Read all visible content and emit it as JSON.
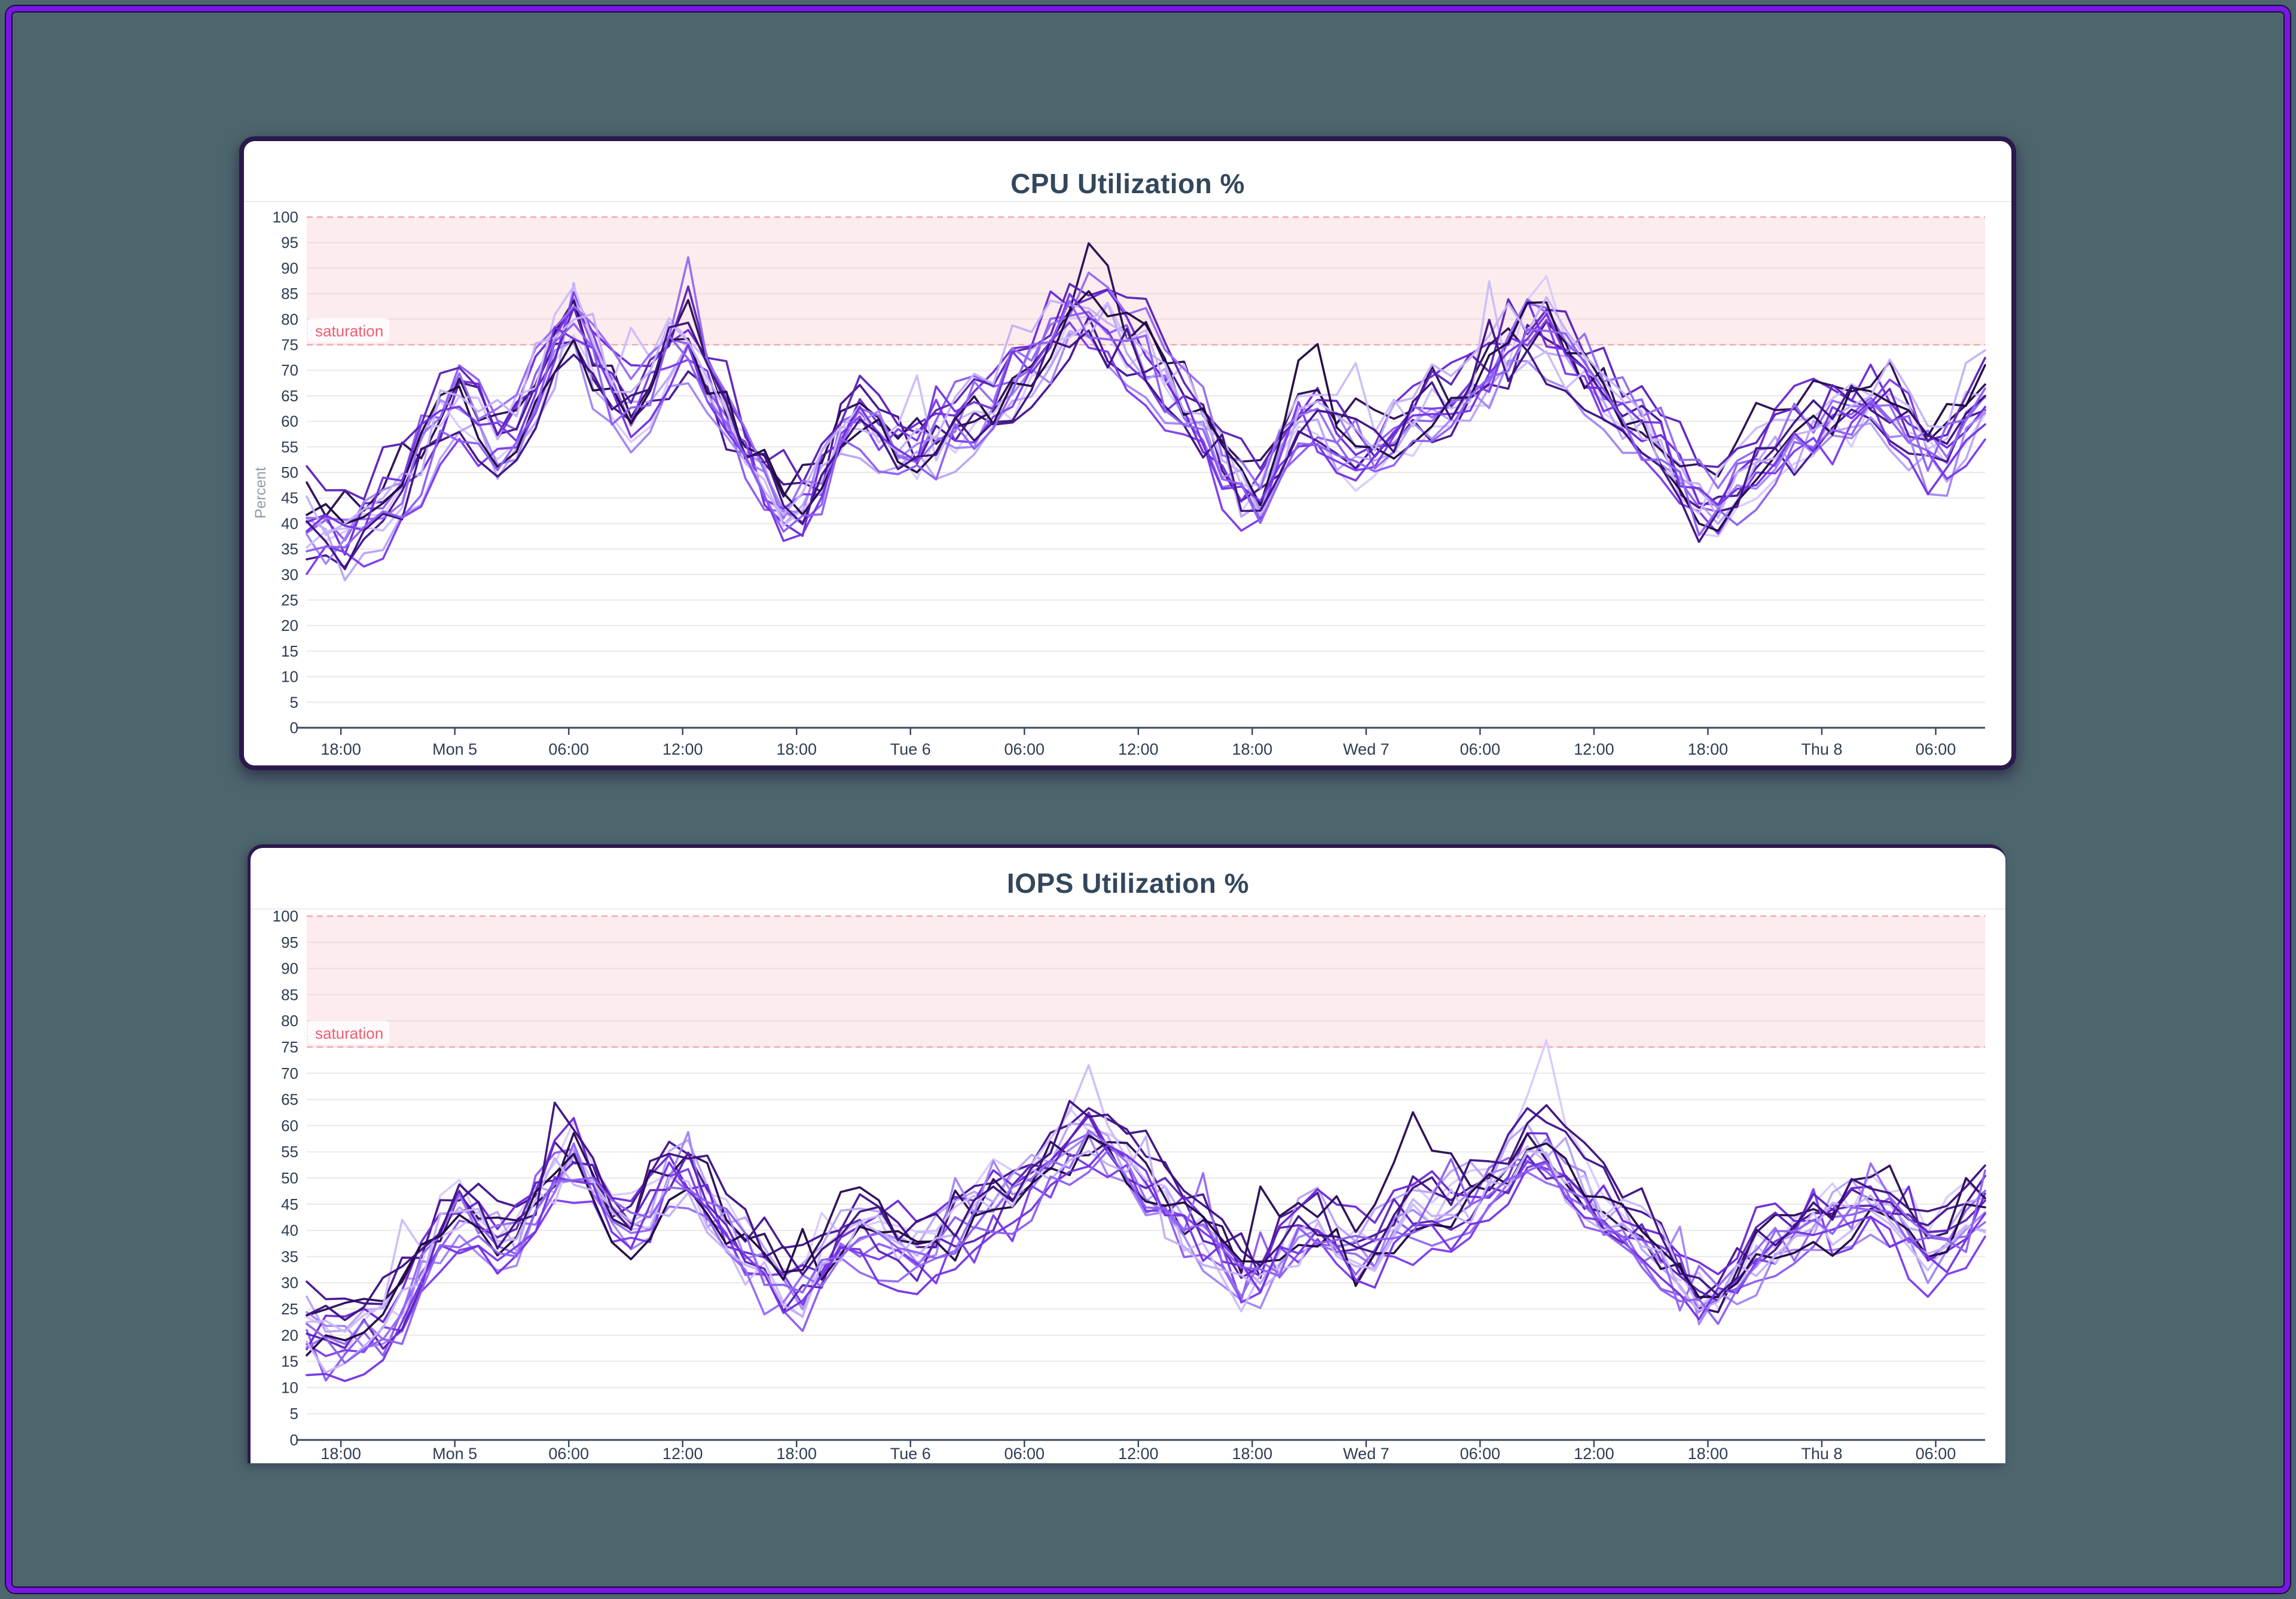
{
  "page": {
    "background": "#4d666e",
    "frame_color": "#7a16e6",
    "frame_edge_color": "#171033"
  },
  "theme": {
    "card_bg": "#ffffff",
    "card_border": "#2b194c",
    "title_color": "#33475c",
    "axis_text_color": "#2e3d52",
    "axis_line_color": "#3a4a5f",
    "grid_color": "#e8e8e8",
    "separator_color": "#ededed",
    "band_fill": "#f9c5ca",
    "band_fill_opacity": 0.32,
    "band_dash_color": "#f2a8ad",
    "saturation_text_color": "#ee5d72",
    "saturation_bg": "#ffffff",
    "percent_label_color": "#8f9aa6"
  },
  "chart_data": [
    {
      "type": "line",
      "title": "CPU Utilization %",
      "ylabel": "Percent",
      "y_axis": {
        "min": 0,
        "max": 100,
        "step": 5
      },
      "x_range_hours": {
        "min": -1.8,
        "max": 86.6
      },
      "x_ticks": [
        {
          "hour": 0,
          "label": "18:00"
        },
        {
          "hour": 6,
          "label": "Mon 5"
        },
        {
          "hour": 12,
          "label": "06:00"
        },
        {
          "hour": 18,
          "label": "12:00"
        },
        {
          "hour": 24,
          "label": "18:00"
        },
        {
          "hour": 30,
          "label": "Tue 6"
        },
        {
          "hour": 36,
          "label": "06:00"
        },
        {
          "hour": 42,
          "label": "12:00"
        },
        {
          "hour": 48,
          "label": "18:00"
        },
        {
          "hour": 54,
          "label": "Wed 7"
        },
        {
          "hour": 60,
          "label": "06:00"
        },
        {
          "hour": 66,
          "label": "12:00"
        },
        {
          "hour": 72,
          "label": "18:00"
        },
        {
          "hour": 78,
          "label": "Thu 8"
        },
        {
          "hour": 84,
          "label": "06:00"
        }
      ],
      "saturation_band": {
        "from": 75,
        "to": 100,
        "label": "saturation"
      },
      "trend": {
        "hours": [
          -3,
          0,
          3,
          6,
          9,
          12,
          15,
          18,
          21,
          24,
          27,
          30,
          33,
          36,
          39,
          42,
          45,
          48,
          51,
          54,
          57,
          60,
          63,
          66,
          69,
          72,
          75,
          78,
          81,
          84,
          87
        ],
        "mean": [
          41,
          37,
          47,
          66,
          56,
          82,
          60,
          78,
          55,
          41,
          63,
          55,
          63,
          71,
          83,
          75,
          61,
          44,
          63,
          54,
          64,
          69,
          79,
          67,
          58,
          42,
          55,
          62,
          66,
          54,
          68
        ]
      },
      "series_style": {
        "count": 16,
        "seed": 1337,
        "offset": 4.2,
        "jitter": 5.0,
        "wander": 3.0,
        "spike_chance": 0.012,
        "spike_min": 8,
        "spike_var": 8,
        "clamp": [
          3,
          99
        ],
        "accents": [
          {
            "hour": 13,
            "amp": 11,
            "series": 7
          },
          {
            "hour": 39.5,
            "amp": 12,
            "series": 5
          },
          {
            "hour": 51.0,
            "amp": 18,
            "series": 11
          },
          {
            "hour": 63.5,
            "amp": 9,
            "series": 0
          },
          {
            "hour": 82.0,
            "amp": 14,
            "series": 7
          }
        ],
        "palette": [
          "#d9cbfa",
          "#8c5cf0",
          "#45138f",
          "#b9a3f7",
          "#6d28d9",
          "#2a0a54",
          "#a184f5",
          "#7c3aed",
          "#cdbbf9",
          "#5b21b6",
          "#9569f2",
          "#1e0740",
          "#c4b0f8",
          "#7433e3",
          "#3b1180",
          "#8d5ff1"
        ]
      }
    },
    {
      "type": "line",
      "title": "IOPS Utilization %",
      "ylabel": "",
      "y_axis": {
        "min": 0,
        "max": 100,
        "step": 5
      },
      "x_range_hours": {
        "min": -1.8,
        "max": 86.6
      },
      "x_ticks": [
        {
          "hour": 0,
          "label": "18:00"
        },
        {
          "hour": 6,
          "label": "Mon 5"
        },
        {
          "hour": 12,
          "label": "06:00"
        },
        {
          "hour": 18,
          "label": "12:00"
        },
        {
          "hour": 24,
          "label": "18:00"
        },
        {
          "hour": 30,
          "label": "Tue 6"
        },
        {
          "hour": 36,
          "label": "06:00"
        },
        {
          "hour": 42,
          "label": "12:00"
        },
        {
          "hour": 48,
          "label": "18:00"
        },
        {
          "hour": 54,
          "label": "Wed 7"
        },
        {
          "hour": 60,
          "label": "06:00"
        },
        {
          "hour": 66,
          "label": "12:00"
        },
        {
          "hour": 72,
          "label": "18:00"
        },
        {
          "hour": 78,
          "label": "Thu 8"
        },
        {
          "hour": 84,
          "label": "06:00"
        }
      ],
      "saturation_band": {
        "from": 75,
        "to": 100,
        "label": "saturation"
      },
      "trend": {
        "hours": [
          -3,
          0,
          3,
          6,
          9,
          12,
          15,
          18,
          21,
          24,
          27,
          30,
          33,
          36,
          39,
          42,
          45,
          48,
          51,
          54,
          57,
          60,
          63,
          66,
          69,
          72,
          75,
          78,
          81,
          84,
          87
        ],
        "mean": [
          23,
          19,
          25,
          44,
          38,
          56,
          40,
          53,
          37,
          27,
          42,
          36,
          43,
          49,
          59,
          51,
          40,
          29,
          43,
          35,
          45,
          47,
          58,
          46,
          38,
          26,
          37,
          42,
          46,
          35,
          47
        ]
      },
      "series_style": {
        "count": 16,
        "seed": 2024,
        "offset": 3.8,
        "jitter": 4.2,
        "wander": 2.5,
        "spike_chance": 0.012,
        "spike_min": 5,
        "spike_var": 7,
        "clamp": [
          4,
          97
        ],
        "accents": [
          {
            "hour": 39.5,
            "amp": 15,
            "series": 8
          },
          {
            "hour": 56.5,
            "amp": 12,
            "series": 5
          },
          {
            "hour": 63.5,
            "amp": 14,
            "series": 0
          }
        ],
        "palette": [
          "#d9cbfa",
          "#8c5cf0",
          "#45138f",
          "#b9a3f7",
          "#6d28d9",
          "#2a0a54",
          "#a184f5",
          "#7c3aed",
          "#cdbbf9",
          "#5b21b6",
          "#9569f2",
          "#1e0740",
          "#c4b0f8",
          "#7433e3",
          "#3b1180",
          "#8d5ff1"
        ]
      }
    }
  ]
}
